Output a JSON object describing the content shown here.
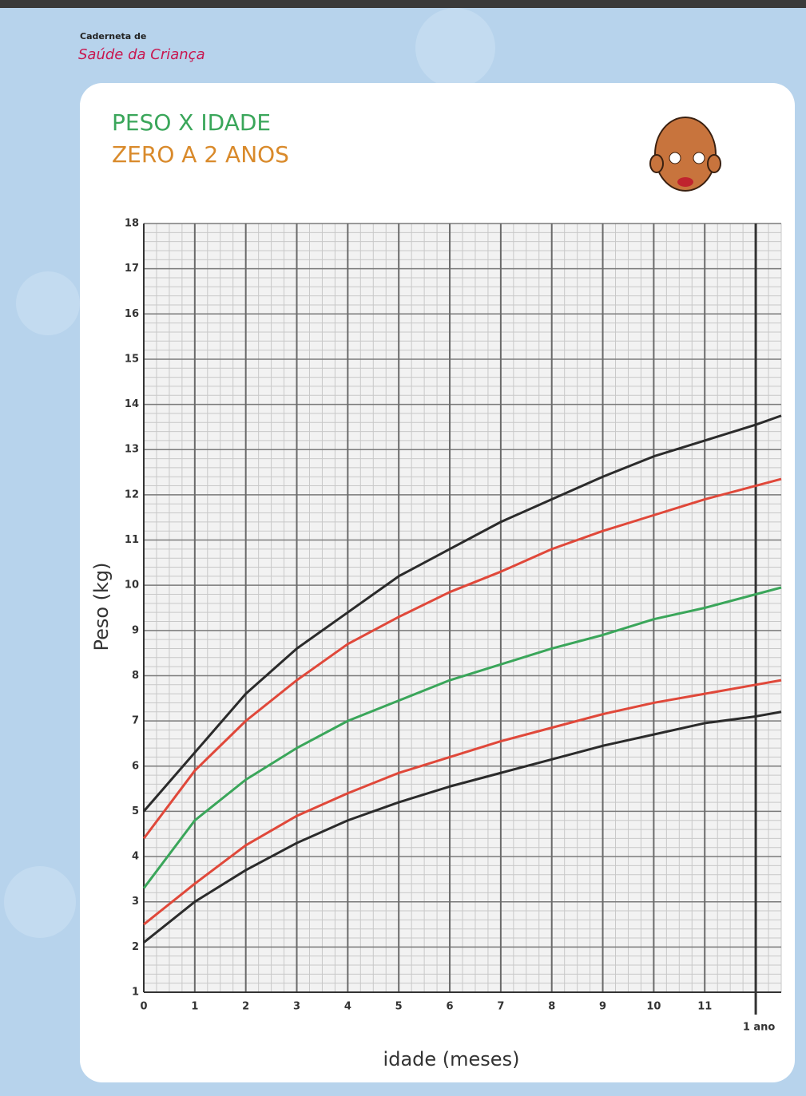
{
  "header": {
    "line1": "Caderneta de",
    "line2": "Saúde da Criança"
  },
  "chart_data": {
    "type": "line",
    "title": "PESO X IDADE",
    "subtitle": "ZERO A 2 ANOS",
    "xlabel": "idade (meses)",
    "ylabel": "Peso (kg)",
    "x": [
      0,
      1,
      2,
      3,
      4,
      5,
      6,
      7,
      8,
      9,
      10,
      11,
      12,
      12.5
    ],
    "series": [
      {
        "color": "#2b2b2b",
        "values": [
          5.0,
          6.3,
          7.6,
          8.6,
          9.4,
          10.2,
          10.8,
          11.4,
          11.9,
          12.4,
          12.85,
          13.2,
          13.55,
          13.75
        ]
      },
      {
        "color": "#e0483a",
        "values": [
          4.4,
          5.9,
          7.0,
          7.9,
          8.7,
          9.3,
          9.85,
          10.3,
          10.8,
          11.2,
          11.55,
          11.9,
          12.2,
          12.35
        ]
      },
      {
        "color": "#3aa65a",
        "values": [
          3.3,
          4.8,
          5.7,
          6.4,
          7.0,
          7.45,
          7.9,
          8.25,
          8.6,
          8.9,
          9.25,
          9.5,
          9.8,
          9.95
        ]
      },
      {
        "color": "#e0483a",
        "values": [
          2.5,
          3.4,
          4.25,
          4.9,
          5.4,
          5.85,
          6.2,
          6.55,
          6.85,
          7.15,
          7.4,
          7.6,
          7.8,
          7.9
        ]
      },
      {
        "color": "#2b2b2b",
        "values": [
          2.1,
          3.0,
          3.7,
          4.3,
          4.8,
          5.2,
          5.55,
          5.85,
          6.15,
          6.45,
          6.7,
          6.95,
          7.1,
          7.2
        ]
      }
    ],
    "xlim": [
      0,
      12.5
    ],
    "ylim": [
      1,
      18
    ],
    "xticks": [
      0,
      1,
      2,
      3,
      4,
      5,
      6,
      7,
      8,
      9,
      10,
      11,
      {
        "value": 12,
        "label": "1 ano"
      }
    ],
    "yticks": [
      1,
      2,
      3,
      4,
      5,
      6,
      7,
      8,
      9,
      10,
      11,
      12,
      13,
      14,
      15,
      16,
      17,
      18
    ],
    "grid": true
  }
}
